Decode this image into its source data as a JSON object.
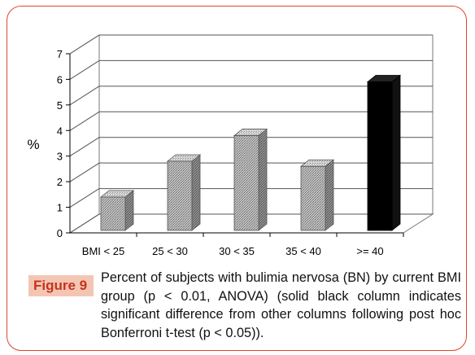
{
  "figure": {
    "label": "Figure 9",
    "caption": "Percent of subjects with bulimia nervosa (BN) by current BMI group (p < 0.01, ANOVA) (solid black column indicates significant difference from other columns following post hoc Bonferroni t-test (p < 0.05))."
  },
  "colors": {
    "frame_border": "#e0442f",
    "label_bg": "#f3c6b4",
    "label_text": "#c8321a"
  },
  "chart_data": {
    "type": "bar",
    "style": "3d-columns",
    "categories": [
      "BMI < 25",
      "25 < 30",
      "30 < 35",
      "35 < 40",
      ">= 40"
    ],
    "values": [
      1.4,
      2.8,
      3.8,
      2.6,
      5.9
    ],
    "highlight": [
      false,
      false,
      false,
      false,
      true
    ],
    "title": "",
    "xlabel": "",
    "ylabel": "%",
    "ylim": [
      0,
      7
    ],
    "yticks": [
      0,
      1,
      2,
      3,
      4,
      5,
      6,
      7
    ],
    "grid": true
  }
}
